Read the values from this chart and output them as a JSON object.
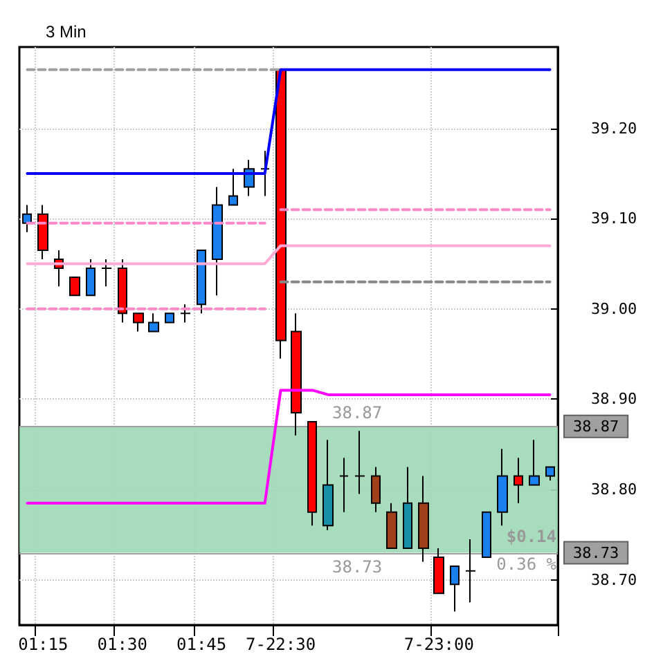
{
  "chart_data": {
    "type": "candlestick",
    "title": "3 Min",
    "categories": [
      null,
      "01:15",
      null,
      null,
      null,
      null,
      "01:30",
      null,
      null,
      null,
      null,
      "01:45",
      null,
      null,
      null,
      null,
      "7-22:30",
      null,
      null,
      null,
      null,
      null,
      null,
      null,
      null,
      null,
      "7-23:00",
      null,
      null,
      null,
      null,
      null,
      null,
      null
    ],
    "ohlc": [
      [
        39.095,
        39.115,
        39.085,
        39.105
      ],
      [
        39.105,
        39.115,
        39.055,
        39.065
      ],
      [
        39.055,
        39.065,
        39.025,
        39.045
      ],
      [
        39.035,
        39.035,
        39.015,
        39.015
      ],
      [
        39.015,
        39.055,
        39.015,
        39.045
      ],
      [
        39.045,
        39.055,
        39.025,
        39.045
      ],
      [
        39.045,
        39.055,
        38.985,
        38.995
      ],
      [
        38.995,
        38.995,
        38.975,
        38.985
      ],
      [
        38.975,
        38.995,
        38.975,
        38.985
      ],
      [
        38.985,
        38.995,
        38.985,
        38.995
      ],
      [
        38.995,
        39.005,
        38.985,
        38.995
      ],
      [
        39.005,
        39.065,
        38.995,
        39.065
      ],
      [
        39.055,
        39.135,
        39.015,
        39.115
      ],
      [
        39.115,
        39.155,
        39.115,
        39.125
      ],
      [
        39.135,
        39.165,
        39.125,
        39.155
      ],
      [
        39.155,
        39.175,
        39.125,
        39.155
      ],
      [
        39.265,
        39.265,
        38.945,
        38.965
      ],
      [
        38.975,
        38.995,
        38.86,
        38.885
      ],
      [
        38.875,
        38.875,
        38.76,
        38.775
      ],
      [
        38.76,
        38.855,
        38.755,
        38.805
      ],
      [
        38.815,
        38.835,
        38.775,
        38.815
      ],
      [
        38.815,
        38.865,
        38.795,
        38.815
      ],
      [
        38.815,
        38.825,
        38.775,
        38.785
      ],
      [
        38.775,
        38.785,
        38.735,
        38.735
      ],
      [
        38.735,
        38.825,
        38.735,
        38.785
      ],
      [
        38.785,
        38.815,
        38.72,
        38.735
      ],
      [
        38.725,
        38.735,
        38.685,
        38.685
      ],
      [
        38.695,
        38.715,
        38.665,
        38.715
      ],
      [
        38.71,
        38.745,
        38.675,
        38.71
      ],
      [
        38.725,
        38.775,
        38.725,
        38.775
      ],
      [
        38.775,
        38.845,
        38.76,
        38.815
      ],
      [
        38.815,
        38.835,
        38.785,
        38.805
      ],
      [
        38.805,
        38.855,
        38.805,
        38.815
      ],
      [
        38.815,
        38.825,
        38.81,
        38.825
      ]
    ],
    "colors": [
      "#1a80f0",
      "#ff0000",
      "#ff0000",
      "#ff0000",
      "#1a80f0",
      "#000000",
      "#ff0000",
      "#ff0000",
      "#1a80f0",
      "#1a80f0",
      "#000000",
      "#1a80f0",
      "#1a80f0",
      "#1a80f0",
      "#1a80f0",
      "#000000",
      "#ff0000",
      "#ff0000",
      "#ff0000",
      "#1a8fa8",
      "#000000",
      "#000000",
      "#a0401a",
      "#a0401a",
      "#1a8fa8",
      "#a0401a",
      "#ff0000",
      "#1a80f0",
      "#000000",
      "#1a80f0",
      "#1a80f0",
      "#ff0000",
      "#1a80f0",
      "#1a80f0"
    ],
    "series": [
      {
        "type": "line",
        "color": "#0000ff",
        "line_style": "solid",
        "values": [
          39.15,
          39.15,
          39.15,
          39.15,
          39.15,
          39.15,
          39.15,
          39.15,
          39.15,
          39.15,
          39.15,
          39.15,
          39.15,
          39.15,
          39.15,
          39.15,
          39.265,
          39.265,
          39.265,
          39.265,
          39.265,
          39.265,
          39.265,
          39.265,
          39.265,
          39.265,
          39.265,
          39.265,
          39.265,
          39.265,
          39.265,
          39.265,
          39.265,
          39.265
        ]
      },
      {
        "type": "line",
        "color": "#ffaad4",
        "line_style": "solid",
        "values": [
          39.05,
          39.05,
          39.05,
          39.05,
          39.05,
          39.05,
          39.05,
          39.05,
          39.05,
          39.05,
          39.05,
          39.05,
          39.05,
          39.05,
          39.05,
          39.05,
          39.07,
          39.07,
          39.07,
          39.07,
          39.07,
          39.07,
          39.07,
          39.07,
          39.07,
          39.07,
          39.07,
          39.07,
          39.07,
          39.07,
          39.07,
          39.07,
          39.07,
          39.07
        ]
      },
      {
        "type": "line",
        "color": "#ff00ff",
        "line_style": "solid",
        "values": [
          38.785,
          38.785,
          38.785,
          38.785,
          38.785,
          38.785,
          38.785,
          38.785,
          38.785,
          38.785,
          38.785,
          38.785,
          38.785,
          38.785,
          38.785,
          38.785,
          38.91,
          38.91,
          38.91,
          38.905,
          38.905,
          38.905,
          38.905,
          38.905,
          38.905,
          38.905,
          38.905,
          38.905,
          38.905,
          38.905,
          38.905,
          38.905,
          38.905,
          38.905
        ]
      },
      {
        "type": "line",
        "color": "#ff88c8",
        "line_style": "dashed",
        "values": [
          39.095,
          39.095,
          39.095,
          39.095,
          39.095,
          39.095,
          39.095,
          39.095,
          39.095,
          39.095,
          39.095,
          39.095,
          39.095,
          39.095,
          39.095,
          39.095,
          null,
          null,
          null,
          null,
          null,
          null,
          null,
          null,
          null,
          null,
          null,
          null,
          null,
          null,
          null,
          null,
          null,
          null
        ]
      },
      {
        "type": "line",
        "color": "#ff88c8",
        "line_style": "dashed",
        "values": [
          39.0,
          39.0,
          39.0,
          39.0,
          39.0,
          39.0,
          39.0,
          39.0,
          39.0,
          39.0,
          39.0,
          39.0,
          39.0,
          39.0,
          39.0,
          39.0,
          null,
          null,
          null,
          null,
          null,
          null,
          null,
          null,
          null,
          null,
          null,
          null,
          null,
          null,
          null,
          null,
          null,
          null
        ]
      },
      {
        "type": "line",
        "color": "#ff88c8",
        "line_style": "dashed",
        "values": [
          null,
          null,
          null,
          null,
          null,
          null,
          null,
          null,
          null,
          null,
          null,
          null,
          null,
          null,
          null,
          null,
          39.11,
          39.11,
          39.11,
          39.11,
          39.11,
          39.11,
          39.11,
          39.11,
          39.11,
          39.11,
          39.11,
          39.11,
          39.11,
          39.11,
          39.11,
          39.11,
          39.11,
          39.11
        ]
      },
      {
        "type": "line",
        "color": "#a0a0a0",
        "line_style": "dashed",
        "values": [
          39.265,
          39.265,
          39.265,
          39.265,
          39.265,
          39.265,
          39.265,
          39.265,
          39.265,
          39.265,
          39.265,
          39.265,
          39.265,
          39.265,
          39.265,
          39.265,
          39.265,
          null,
          null,
          null,
          null,
          null,
          null,
          null,
          null,
          null,
          null,
          null,
          null,
          null,
          null,
          null,
          null,
          null
        ]
      },
      {
        "type": "line",
        "color": "#888888",
        "line_style": "dashed",
        "values": [
          null,
          null,
          null,
          null,
          null,
          null,
          null,
          null,
          null,
          null,
          null,
          null,
          null,
          null,
          null,
          null,
          39.03,
          39.03,
          39.03,
          39.03,
          39.03,
          39.03,
          39.03,
          39.03,
          39.03,
          39.03,
          39.03,
          39.03,
          39.03,
          39.03,
          39.03,
          39.03,
          39.03,
          39.03
        ]
      }
    ],
    "ylim": [
      38.65,
      39.29
    ],
    "yticks": [
      {
        "value": 38.7,
        "label": "38.70"
      },
      {
        "value": 38.8,
        "label": "38.80"
      },
      {
        "value": 38.9,
        "label": "38.90"
      },
      {
        "value": 39.0,
        "label": "39.00"
      },
      {
        "value": 39.1,
        "label": "39.10"
      },
      {
        "value": 39.2,
        "label": "39.20"
      }
    ],
    "grid": true,
    "marker": "none",
    "ref_lines": [
      {
        "axis": "y",
        "value": 38.87,
        "label": "38.87",
        "color": "#a0a0a0",
        "line_style": "solid"
      },
      {
        "axis": "y",
        "value": 38.73,
        "label": "38.73",
        "color": "#a0a0a0",
        "line_style": "solid"
      }
    ],
    "bands": [
      {
        "axis": "y",
        "from": 38.73,
        "to": 38.87,
        "color": "#9dd8b5"
      }
    ],
    "annotations": [
      "38.87",
      "38.73",
      "$0.14",
      "0.36 %"
    ]
  }
}
